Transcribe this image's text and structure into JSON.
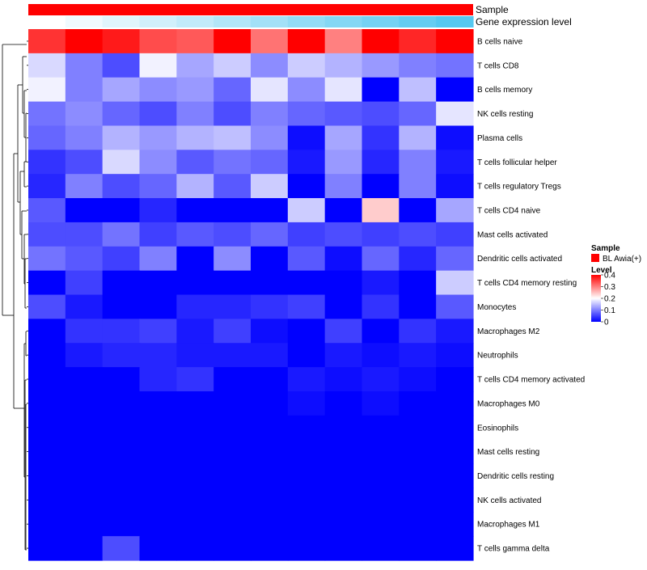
{
  "chart_data": {
    "type": "heatmap",
    "annotation_tracks": [
      {
        "name": "Sample",
        "color": "#ff0000"
      },
      {
        "name": "Gene expression level",
        "gradient": [
          "#ffffff",
          "#56c8f0"
        ]
      }
    ],
    "rows": [
      "B cells naive",
      "T cells CD8",
      "B cells memory",
      "NK cells resting",
      "Plasma cells",
      "T cells follicular helper",
      "T cells regulatory  Tregs",
      "T cells CD4 naive",
      "Mast cells activated",
      "Dendritic cells activated",
      "T cells CD4 memory resting",
      "Monocytes",
      "Macrophages M2",
      "Neutrophils",
      "T cells CD4 memory activated",
      "Macrophages M0",
      "Eosinophils",
      "Mast cells resting",
      "Dendritic cells resting",
      "NK cells activated",
      "Macrophages M1",
      "T cells gamma delta"
    ],
    "n_columns": 12,
    "values": [
      [
        0.36,
        0.4,
        0.38,
        0.34,
        0.33,
        0.4,
        0.31,
        0.4,
        0.3,
        0.4,
        0.37,
        0.4
      ],
      [
        0.17,
        0.1,
        0.06,
        0.19,
        0.13,
        0.16,
        0.11,
        0.16,
        0.14,
        0.12,
        0.1,
        0.09
      ],
      [
        0.19,
        0.1,
        0.13,
        0.11,
        0.12,
        0.08,
        0.18,
        0.11,
        0.18,
        0.0,
        0.15,
        0.0
      ],
      [
        0.09,
        0.11,
        0.08,
        0.06,
        0.1,
        0.06,
        0.1,
        0.08,
        0.07,
        0.06,
        0.08,
        0.18
      ],
      [
        0.08,
        0.1,
        0.14,
        0.12,
        0.14,
        0.15,
        0.11,
        0.01,
        0.13,
        0.04,
        0.14,
        0.01
      ],
      [
        0.04,
        0.06,
        0.17,
        0.11,
        0.07,
        0.09,
        0.08,
        0.02,
        0.12,
        0.03,
        0.1,
        0.02
      ],
      [
        0.03,
        0.1,
        0.06,
        0.08,
        0.14,
        0.07,
        0.16,
        0.0,
        0.1,
        0.0,
        0.1,
        0.01
      ],
      [
        0.07,
        0.0,
        0.0,
        0.03,
        0.0,
        0.0,
        0.0,
        0.16,
        0.0,
        0.24,
        0.0,
        0.13
      ],
      [
        0.06,
        0.06,
        0.09,
        0.05,
        0.07,
        0.06,
        0.08,
        0.05,
        0.06,
        0.05,
        0.06,
        0.05
      ],
      [
        0.09,
        0.07,
        0.05,
        0.1,
        0.0,
        0.11,
        0.0,
        0.07,
        0.01,
        0.08,
        0.03,
        0.08
      ],
      [
        0.0,
        0.05,
        0.0,
        0.0,
        0.0,
        0.0,
        0.0,
        0.0,
        0.0,
        0.02,
        0.0,
        0.16
      ],
      [
        0.06,
        0.02,
        0.0,
        0.0,
        0.03,
        0.03,
        0.04,
        0.05,
        0.0,
        0.04,
        0.0,
        0.07
      ],
      [
        0.0,
        0.04,
        0.04,
        0.05,
        0.02,
        0.05,
        0.01,
        0.0,
        0.05,
        0.0,
        0.04,
        0.02
      ],
      [
        0.0,
        0.02,
        0.03,
        0.03,
        0.02,
        0.02,
        0.02,
        0.0,
        0.02,
        0.01,
        0.02,
        0.01
      ],
      [
        0.0,
        0.0,
        0.0,
        0.03,
        0.04,
        0.0,
        0.0,
        0.02,
        0.01,
        0.02,
        0.01,
        0.0
      ],
      [
        0.0,
        0.0,
        0.0,
        0.0,
        0.0,
        0.0,
        0.0,
        0.01,
        0.0,
        0.01,
        0.0,
        0.0
      ],
      [
        0.0,
        0.0,
        0.0,
        0.0,
        0.0,
        0.0,
        0.0,
        0.0,
        0.0,
        0.0,
        0.0,
        0.0
      ],
      [
        0.0,
        0.0,
        0.0,
        0.0,
        0.0,
        0.0,
        0.0,
        0.0,
        0.0,
        0.0,
        0.0,
        0.0
      ],
      [
        0.0,
        0.0,
        0.0,
        0.0,
        0.0,
        0.0,
        0.0,
        0.0,
        0.0,
        0.0,
        0.0,
        0.0
      ],
      [
        0.0,
        0.0,
        0.0,
        0.0,
        0.0,
        0.0,
        0.0,
        0.0,
        0.0,
        0.0,
        0.0,
        0.0
      ],
      [
        0.0,
        0.0,
        0.0,
        0.0,
        0.0,
        0.0,
        0.0,
        0.0,
        0.0,
        0.0,
        0.0,
        0.0
      ],
      [
        0.0,
        0.0,
        0.06,
        0.0,
        0.0,
        0.0,
        0.0,
        0.0,
        0.0,
        0.0,
        0.0,
        0.0
      ]
    ],
    "color_scale": {
      "stops": [
        {
          "value": 0.0,
          "color": "#0000ff"
        },
        {
          "value": 0.2,
          "color": "#ffffff"
        },
        {
          "value": 0.4,
          "color": "#ff0000"
        }
      ],
      "range": [
        0,
        0.4
      ]
    },
    "legend": {
      "sample_title": "Sample",
      "sample_entry": "BL Awia(+)",
      "sample_color": "#ff0000",
      "level_title": "Level",
      "level_ticks": [
        "0.4",
        "0.3",
        "0.2",
        "0.1",
        "0"
      ],
      "position": "right"
    },
    "dendrogram": "row-clustering-left"
  }
}
